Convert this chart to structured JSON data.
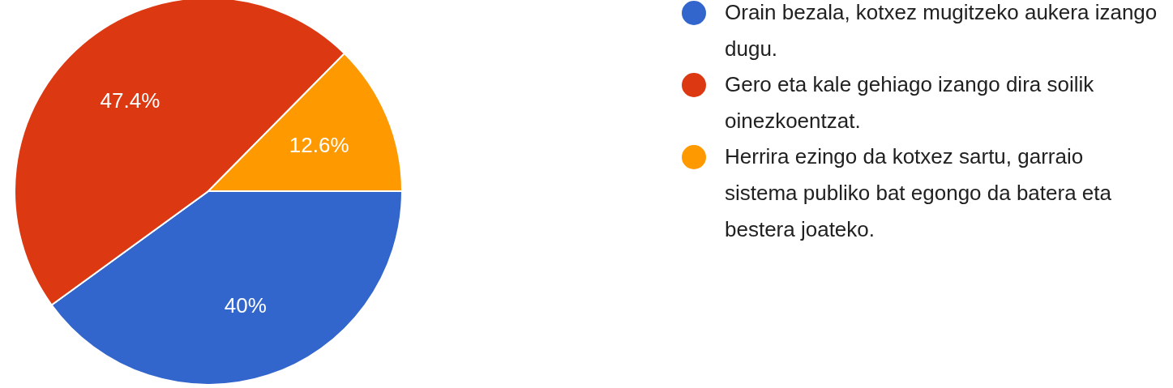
{
  "chart_data": {
    "type": "pie",
    "categories": [
      "Orain bezala, kotxez mugitzeko aukera izango dugu.",
      "Gero eta kale gehiago izango dira soilik oinezkoentzat.",
      "Herrira ezingo da kotxez sartu, garraio sistema publiko bat egongo da batera eta bestera joateko."
    ],
    "values": [
      40,
      47.4,
      12.6
    ],
    "colors": [
      "#3366cc",
      "#dc3912",
      "#ff9900"
    ],
    "value_labels": [
      "40%",
      "47.4%",
      "12.6%"
    ],
    "legend": "right"
  }
}
